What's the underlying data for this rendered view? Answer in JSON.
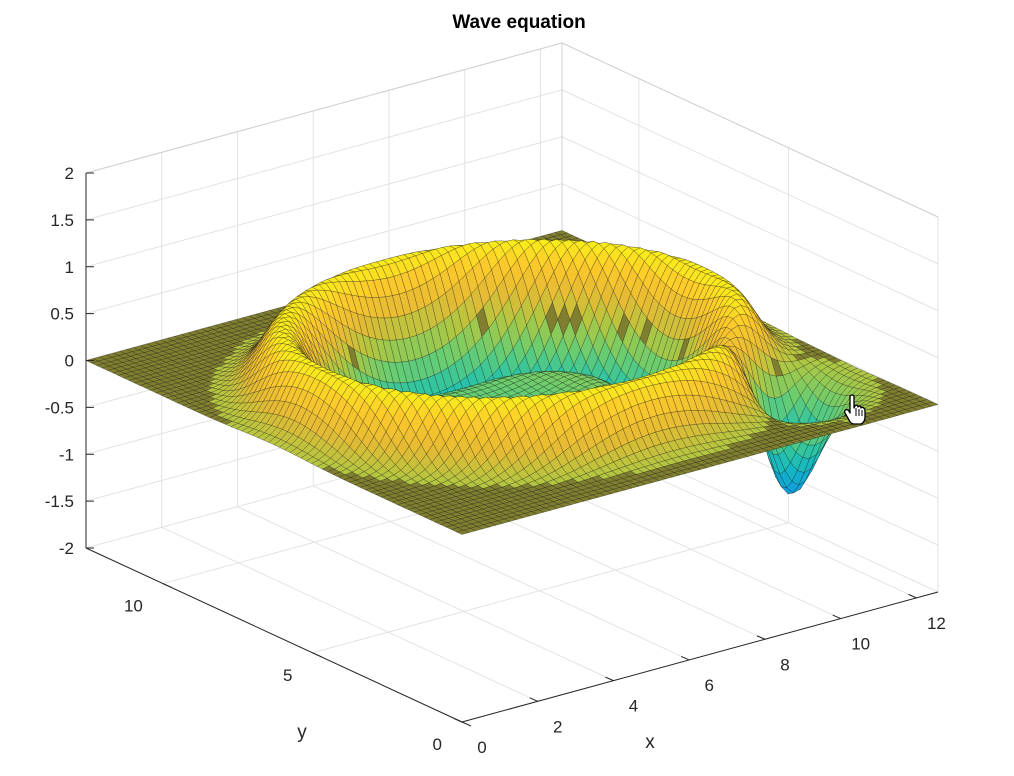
{
  "window": {
    "title": "Wave equation"
  },
  "chart_data": {
    "type": "surface",
    "title": "Wave equation",
    "xlabel": "x",
    "ylabel": "y",
    "zlabel": "",
    "xlim": [
      0,
      12.57
    ],
    "ylim": [
      0,
      12.57
    ],
    "zlim": [
      -2,
      2
    ],
    "xticks": [
      "0",
      "2",
      "4",
      "6",
      "8",
      "10",
      "12"
    ],
    "yticks": [
      "0",
      "5",
      "10"
    ],
    "zticks": [
      "2",
      "1.5",
      "1",
      "0.5",
      "0",
      "-0.5",
      "-1",
      "-1.5",
      "-2"
    ],
    "grid": true,
    "colormap": "parula",
    "colors": {
      "low": "#3e26a8",
      "mid": "#12b4c9",
      "high": "#f9fb15",
      "flat": "#807f2f"
    },
    "surface": {
      "description_values": {
        "flat_level": 0,
        "ring_peak": 0.7,
        "trough_min": -1.7,
        "wave_center": [
          6.28,
          6.28
        ]
      }
    }
  },
  "cursor": {
    "icon": "hand-pointer-icon"
  }
}
